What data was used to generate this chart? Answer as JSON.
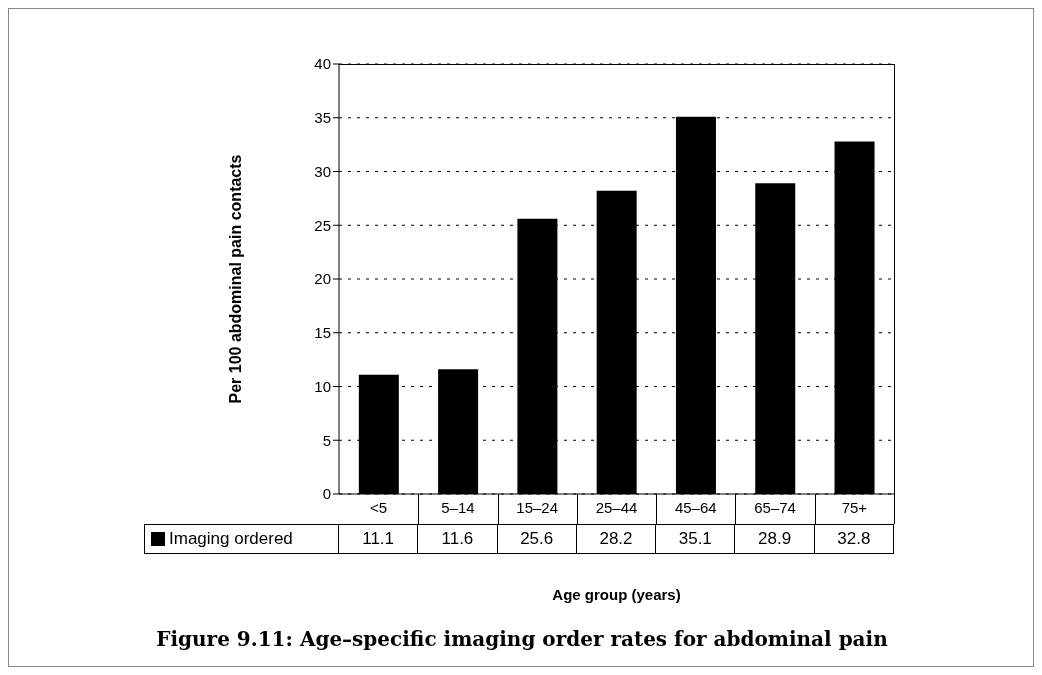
{
  "chart_data": {
    "type": "bar",
    "title": "Figure 9.11: Age–specific imaging order rates for abdominal pain",
    "xlabel": "Age group (years)",
    "ylabel": "Per 100 abdominal pain contacts",
    "categories": [
      "<5",
      "5–14",
      "15–24",
      "25–44",
      "45–64",
      "65–74",
      "75+"
    ],
    "series": [
      {
        "name": "Imaging ordered",
        "color": "#000000",
        "values": [
          11.1,
          11.6,
          25.6,
          28.2,
          35.1,
          28.9,
          32.8
        ]
      }
    ],
    "ylim": [
      0,
      40
    ],
    "yticks": [
      0,
      5,
      10,
      15,
      20,
      25,
      30,
      35,
      40
    ],
    "grid": "y",
    "legend": "bottom left",
    "data_labels": true
  }
}
